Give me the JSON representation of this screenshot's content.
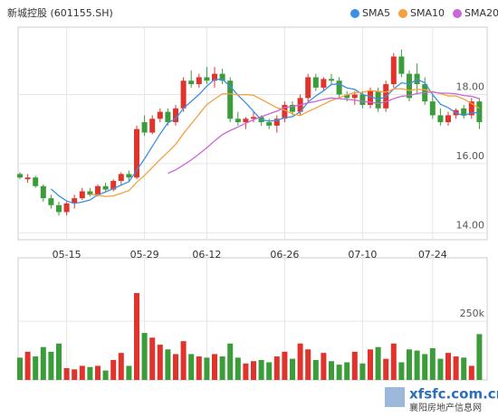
{
  "chart_data": [
    {
      "type": "candlestick",
      "title": "新城控股 (601155.SH)",
      "categories": [
        null,
        null,
        null,
        null,
        null,
        null,
        "05-15",
        null,
        null,
        null,
        null,
        null,
        null,
        null,
        null,
        null,
        "05-29",
        null,
        null,
        null,
        null,
        null,
        null,
        null,
        "06-12",
        null,
        null,
        null,
        null,
        null,
        null,
        null,
        null,
        null,
        "06-26",
        null,
        null,
        null,
        null,
        null,
        null,
        null,
        null,
        null,
        "07-10",
        null,
        null,
        null,
        null,
        null,
        null,
        null,
        null,
        "07-24",
        null,
        null,
        null,
        null,
        null,
        null
      ],
      "open": [
        15.7,
        15.55,
        15.6,
        15.35,
        15.0,
        14.8,
        14.6,
        14.85,
        15.0,
        15.2,
        15.1,
        15.35,
        15.25,
        15.5,
        15.7,
        15.6,
        17.2,
        16.9,
        17.3,
        17.5,
        17.2,
        17.6,
        18.4,
        18.3,
        18.5,
        18.4,
        18.6,
        18.4,
        17.3,
        17.2,
        17.3,
        17.35,
        17.2,
        17.1,
        17.3,
        17.7,
        17.5,
        17.9,
        18.5,
        18.2,
        18.45,
        18.4,
        18.0,
        17.9,
        18.0,
        17.7,
        18.1,
        17.6,
        18.3,
        19.1,
        18.6,
        18.6,
        18.3,
        17.8,
        17.4,
        17.2,
        17.4,
        17.6,
        17.4,
        17.8
      ],
      "high": [
        15.75,
        15.7,
        15.65,
        15.4,
        15.1,
        14.9,
        14.9,
        15.1,
        15.3,
        15.3,
        15.4,
        15.45,
        15.55,
        15.75,
        15.8,
        17.1,
        17.4,
        17.4,
        17.6,
        17.6,
        17.7,
        18.5,
        18.7,
        18.6,
        18.8,
        18.8,
        18.75,
        18.5,
        17.5,
        17.35,
        17.5,
        17.4,
        17.3,
        17.4,
        17.8,
        17.8,
        18.0,
        18.6,
        18.6,
        18.5,
        18.6,
        18.5,
        18.1,
        18.1,
        18.1,
        18.2,
        18.2,
        18.4,
        19.2,
        19.3,
        18.7,
        18.9,
        18.5,
        18.0,
        17.6,
        17.5,
        17.6,
        17.7,
        17.9,
        17.9
      ],
      "low": [
        15.55,
        15.45,
        15.3,
        14.9,
        14.7,
        14.5,
        14.5,
        14.7,
        14.95,
        15.05,
        15.05,
        15.2,
        15.2,
        15.4,
        15.5,
        15.55,
        16.8,
        16.85,
        17.2,
        17.1,
        17.1,
        17.5,
        18.2,
        18.2,
        18.3,
        18.2,
        18.3,
        17.2,
        17.1,
        17.0,
        17.2,
        17.1,
        17.0,
        16.9,
        17.2,
        17.4,
        17.4,
        17.8,
        18.1,
        18.1,
        18.3,
        17.9,
        17.8,
        17.7,
        17.6,
        17.6,
        17.5,
        17.5,
        18.2,
        18.5,
        17.8,
        18.0,
        17.7,
        17.3,
        17.1,
        17.1,
        17.3,
        17.3,
        17.3,
        17.0
      ],
      "close": [
        15.6,
        15.6,
        15.35,
        15.0,
        14.8,
        14.6,
        14.85,
        15.0,
        15.2,
        15.1,
        15.35,
        15.25,
        15.5,
        15.7,
        15.6,
        17.0,
        16.9,
        17.3,
        17.5,
        17.2,
        17.6,
        18.4,
        18.3,
        18.5,
        18.4,
        18.6,
        18.4,
        17.3,
        17.2,
        17.3,
        17.35,
        17.2,
        17.1,
        17.3,
        17.7,
        17.5,
        17.9,
        18.5,
        18.2,
        18.45,
        18.4,
        18.0,
        17.9,
        18.0,
        17.7,
        18.1,
        17.6,
        18.3,
        19.1,
        18.6,
        17.9,
        18.3,
        17.8,
        17.4,
        17.2,
        17.4,
        17.55,
        17.4,
        17.8,
        17.2
      ],
      "up_color": "#e0332c",
      "down_color": "#3a9d3a",
      "series": [
        {
          "name": "SMA5",
          "color": "#3d8fe3",
          "values": [
            null,
            null,
            null,
            null,
            15.27,
            15.07,
            14.92,
            14.85,
            14.89,
            14.95,
            15.1,
            15.18,
            15.28,
            15.38,
            15.48,
            15.81,
            16.14,
            16.5,
            16.86,
            17.18,
            17.3,
            17.6,
            17.8,
            18.0,
            18.24,
            18.44,
            18.44,
            18.24,
            17.98,
            17.76,
            17.51,
            17.27,
            17.23,
            17.25,
            17.33,
            17.36,
            17.5,
            17.78,
            17.96,
            18.11,
            18.29,
            18.31,
            18.19,
            18.15,
            18.0,
            17.94,
            17.86,
            17.94,
            18.16,
            18.34,
            18.3,
            18.44,
            18.34,
            18.0,
            17.72,
            17.62,
            17.47,
            17.39,
            17.47,
            17.47
          ]
        },
        {
          "name": "SMA10",
          "color": "#f5a03f",
          "values": [
            null,
            null,
            null,
            null,
            null,
            null,
            null,
            null,
            null,
            15.11,
            15.09,
            15.05,
            15.07,
            15.14,
            15.22,
            15.46,
            15.66,
            15.89,
            16.12,
            16.33,
            16.56,
            16.87,
            17.15,
            17.43,
            17.71,
            17.87,
            18.02,
            18.02,
            17.99,
            18.0,
            17.98,
            17.86,
            17.74,
            17.62,
            17.55,
            17.44,
            17.39,
            17.51,
            17.61,
            17.72,
            17.83,
            17.91,
            17.99,
            18.06,
            18.06,
            18.12,
            18.09,
            18.07,
            18.16,
            18.17,
            18.12,
            18.15,
            18.14,
            18.08,
            18.03,
            17.96,
            17.96,
            17.87,
            17.74,
            17.6
          ]
        },
        {
          "name": "SMA20",
          "color": "#c867d6",
          "values": [
            null,
            null,
            null,
            null,
            null,
            null,
            null,
            null,
            null,
            null,
            null,
            null,
            null,
            null,
            null,
            null,
            null,
            null,
            null,
            15.72,
            15.82,
            15.96,
            16.11,
            16.28,
            16.46,
            16.66,
            16.84,
            16.96,
            17.06,
            17.17,
            17.27,
            17.36,
            17.44,
            17.52,
            17.63,
            17.65,
            17.7,
            17.76,
            17.8,
            17.86,
            17.9,
            17.88,
            17.86,
            17.84,
            17.8,
            17.78,
            17.74,
            17.79,
            17.88,
            17.95,
            17.97,
            18.03,
            18.06,
            18.07,
            18.04,
            18.04,
            18.02,
            17.97,
            17.95,
            17.88
          ]
        }
      ],
      "ylim": [
        13.8,
        19.95
      ],
      "yticks": [
        {
          "value": 14,
          "label": "14.00"
        },
        {
          "value": 16,
          "label": "16.00"
        },
        {
          "value": 18,
          "label": "18.00"
        }
      ],
      "grid": true
    },
    {
      "type": "bar",
      "values": [
        95000,
        120000,
        100000,
        140000,
        120000,
        155000,
        50000,
        45000,
        60000,
        55000,
        60000,
        40000,
        85000,
        115000,
        60000,
        370000,
        200000,
        180000,
        150000,
        130000,
        110000,
        165000,
        110000,
        100000,
        95000,
        110000,
        100000,
        155000,
        95000,
        70000,
        80000,
        85000,
        75000,
        100000,
        120000,
        90000,
        155000,
        130000,
        85000,
        115000,
        80000,
        65000,
        75000,
        120000,
        70000,
        130000,
        140000,
        90000,
        155000,
        75000,
        130000,
        125000,
        110000,
        135000,
        90000,
        115000,
        100000,
        95000,
        60000,
        195000
      ],
      "ylim": [
        0,
        520000
      ],
      "yticks": [
        {
          "value": 250000,
          "label": "250k"
        }
      ]
    }
  ],
  "watermark": {
    "site": "xfsfc.com.cn",
    "name": "襄阳房地产信息网"
  }
}
